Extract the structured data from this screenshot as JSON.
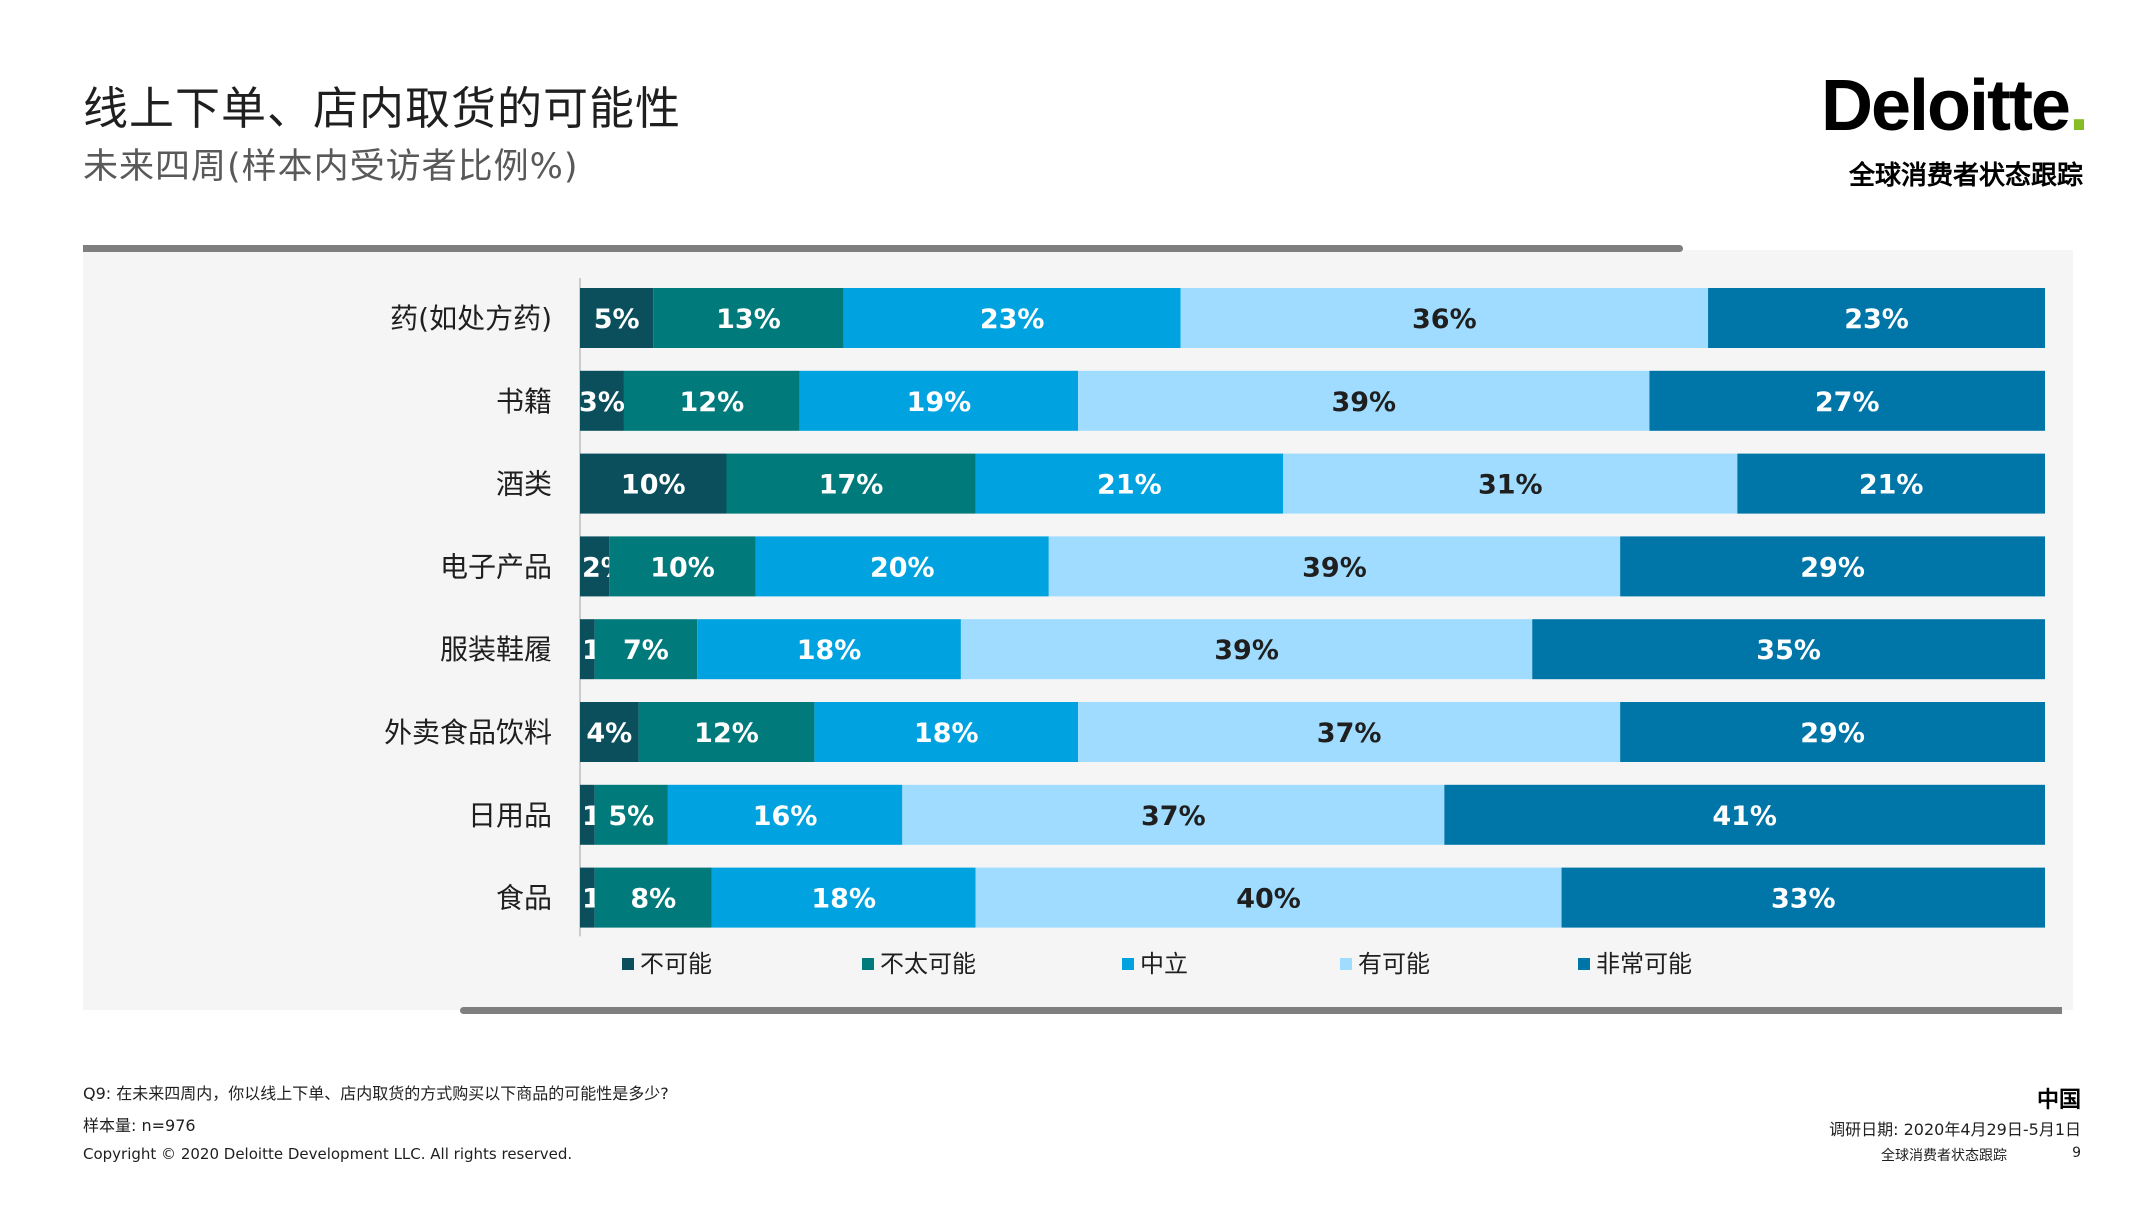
{
  "header": {
    "title": "线上下单、店内取货的可能性",
    "subtitle": "未来四周(样本内受访者比例%)",
    "logo_text": "Deloitte",
    "logo_dot": ".",
    "tracker_label": "全球消费者状态跟踪"
  },
  "colors": {
    "series": [
      "#0b4f5c",
      "#007a7a",
      "#00a3e0",
      "#a0dcff",
      "#0076a8"
    ],
    "logo_dot": "#86bc25"
  },
  "chart_data": {
    "type": "bar",
    "orientation": "horizontal",
    "stacked": true,
    "title": "线上下单、店内取货的可能性",
    "subtitle": "未来四周(样本内受访者比例%)",
    "categories": [
      "药(如处方药)",
      "书籍",
      "酒类",
      "电子产品",
      "服装鞋履",
      "外卖食品饮料",
      "日用品",
      "食品"
    ],
    "series": [
      {
        "name": "不可能",
        "values": [
          5,
          3,
          10,
          2,
          1,
          4,
          1,
          1
        ]
      },
      {
        "name": "不太可能",
        "values": [
          13,
          12,
          17,
          10,
          7,
          12,
          5,
          8
        ]
      },
      {
        "name": "中立",
        "values": [
          23,
          19,
          21,
          20,
          18,
          18,
          16,
          18
        ]
      },
      {
        "name": "有可能",
        "values": [
          36,
          39,
          31,
          39,
          39,
          37,
          37,
          40
        ]
      },
      {
        "name": "非常可能",
        "values": [
          23,
          27,
          21,
          29,
          35,
          29,
          41,
          33
        ]
      }
    ],
    "legend_position": "bottom",
    "xlim": [
      0,
      100
    ]
  },
  "footer": {
    "question": "Q9: 在未来四周内，你以线上下单、店内取货的方式购买以下商品的可能性是多少?",
    "sample": "样本量: n=976",
    "copyright": "Copyright © 2020 Deloitte Development LLC. All rights reserved.",
    "country": "中国",
    "survey_date": "调研日期: 2020年4月29日-5月1日",
    "tracker": "全球消费者状态跟踪",
    "page_number": "9"
  }
}
